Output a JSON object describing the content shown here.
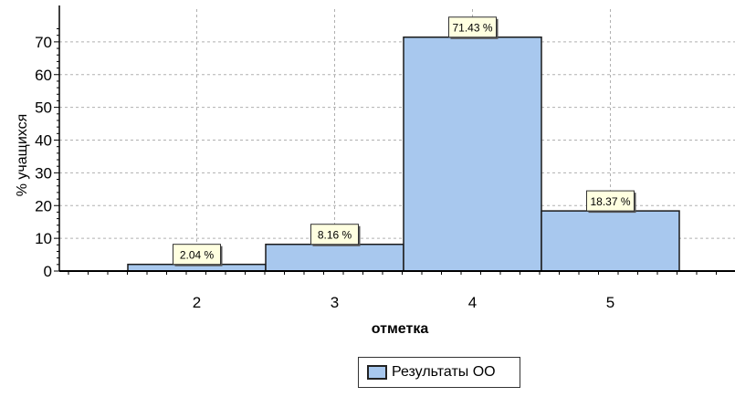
{
  "chart_data": {
    "type": "bar",
    "categories": [
      "2",
      "3",
      "4",
      "5"
    ],
    "series": [
      {
        "name": "Результаты ОО",
        "values": [
          2.04,
          8.16,
          71.43,
          18.37
        ]
      }
    ],
    "data_labels": [
      "2.04 %",
      "8.16 %",
      "71.43 %",
      "18.37 %"
    ],
    "xlabel": "отметка",
    "ylabel": "% учащихся",
    "ylim": [
      0,
      80
    ],
    "yticks": [
      0,
      10,
      20,
      30,
      40,
      50,
      60,
      70
    ],
    "grid": true,
    "legend_position": "bottom",
    "colors": {
      "bar_fill": "#a8c8ee",
      "bar_stroke": "#1a1a1a",
      "label_bg": "#ffffe0",
      "grid": "#b0b0b0"
    }
  },
  "legend": {
    "label": "Результаты ОО"
  }
}
